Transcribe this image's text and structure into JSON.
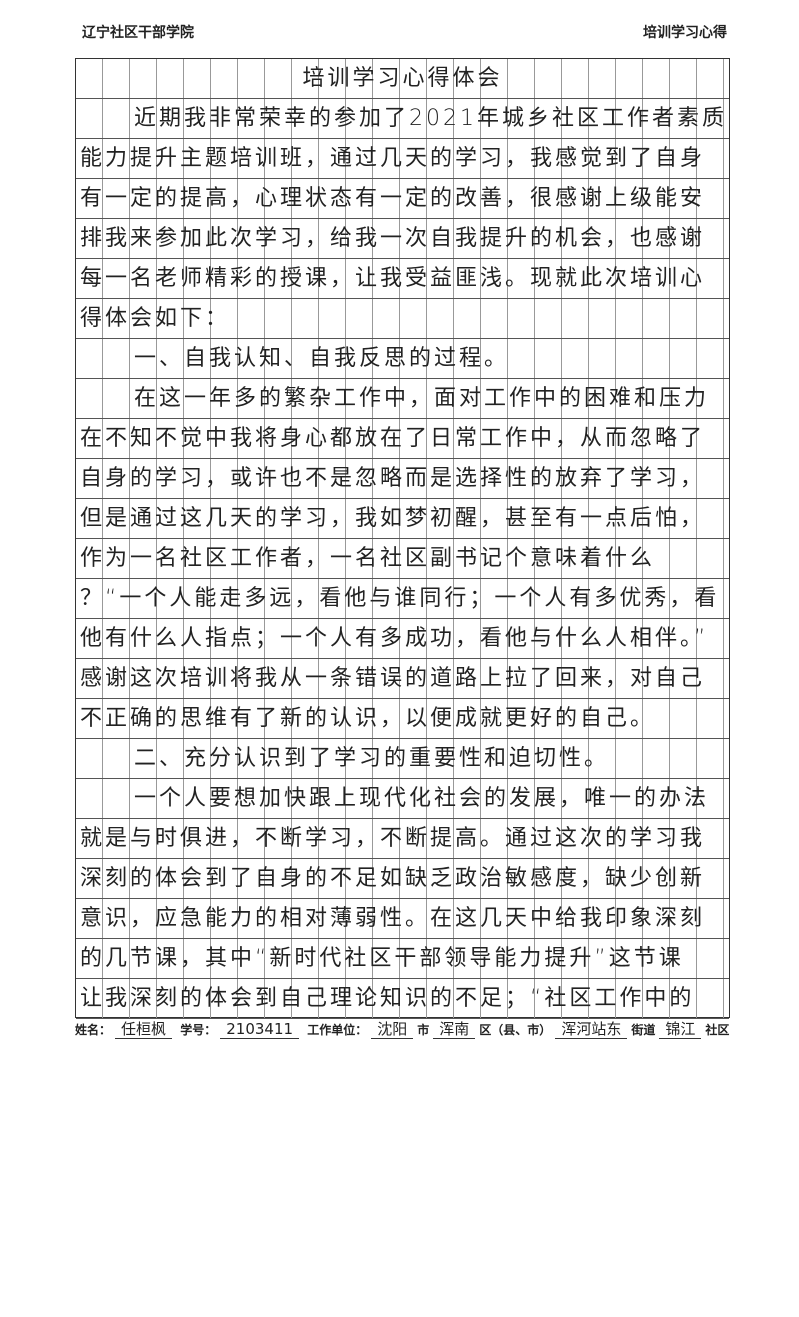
{
  "header": {
    "left": "辽宁社区干部学院",
    "right": "培训学习心得"
  },
  "title": "培训学习心得体会",
  "lines": [
    "近期我非常荣幸的参加了2021年城乡社区工作者素质",
    "能力提升主题培训班，通过几天的学习，我感觉到了自身",
    "有一定的提高，心理状态有一定的改善，很感谢上级能安",
    "排我来参加此次学习，给我一次自我提升的机会，也感谢",
    "每一名老师精彩的授课，让我受益匪浅。现就此次培训心",
    "得体会如下：",
    "一、自我认知、自我反思的过程。",
    "在这一年多的繁杂工作中，面对工作中的困难和压力",
    "在不知不觉中我将身心都放在了日常工作中，从而忽略了",
    "自身的学习，或许也不是忽略而是选择性的放弃了学习，",
    "但是通过这几天的学习，我如梦初醒，甚至有一点后怕，",
    "作为一名社区工作者，一名社区副书记个意味着什么",
    "？“一个人能走多远，看他与谁同行；一个人有多优秀，看",
    "他有什么人指点；一个人有多成功，看他与什么人相伴。”",
    "感谢这次培训将我从一条错误的道路上拉了回来，对自己",
    "不正确的思维有了新的认识，以便成就更好的自己。",
    "二、充分认识到了学习的重要性和迫切性。",
    "一个人要想加快跟上现代化社会的发展，唯一的办法",
    "就是与时俱进，不断学习，不断提高。通过这次的学习我",
    "深刻的体会到了自身的不足如缺乏政治敏感度，缺少创新",
    "意识，应急能力的相对薄弱性。在这几天中给我印象深刻",
    "的几节课，其中“新时代社区干部领导能力提升”这节课",
    "让我深刻的体会到自己理论知识的不足；“社区工作中的"
  ],
  "footer": {
    "name_label": "姓名：",
    "name": "任桓枫",
    "id_label": "学号：",
    "id": "2103411",
    "unit_label": "工作单位：",
    "city": "沈阳",
    "city_label": "市",
    "district": "浑南",
    "district_label": "区（县、市）",
    "street": "浑河站东",
    "street_label": "街道",
    "community": "锦江",
    "community_label": "社区"
  }
}
